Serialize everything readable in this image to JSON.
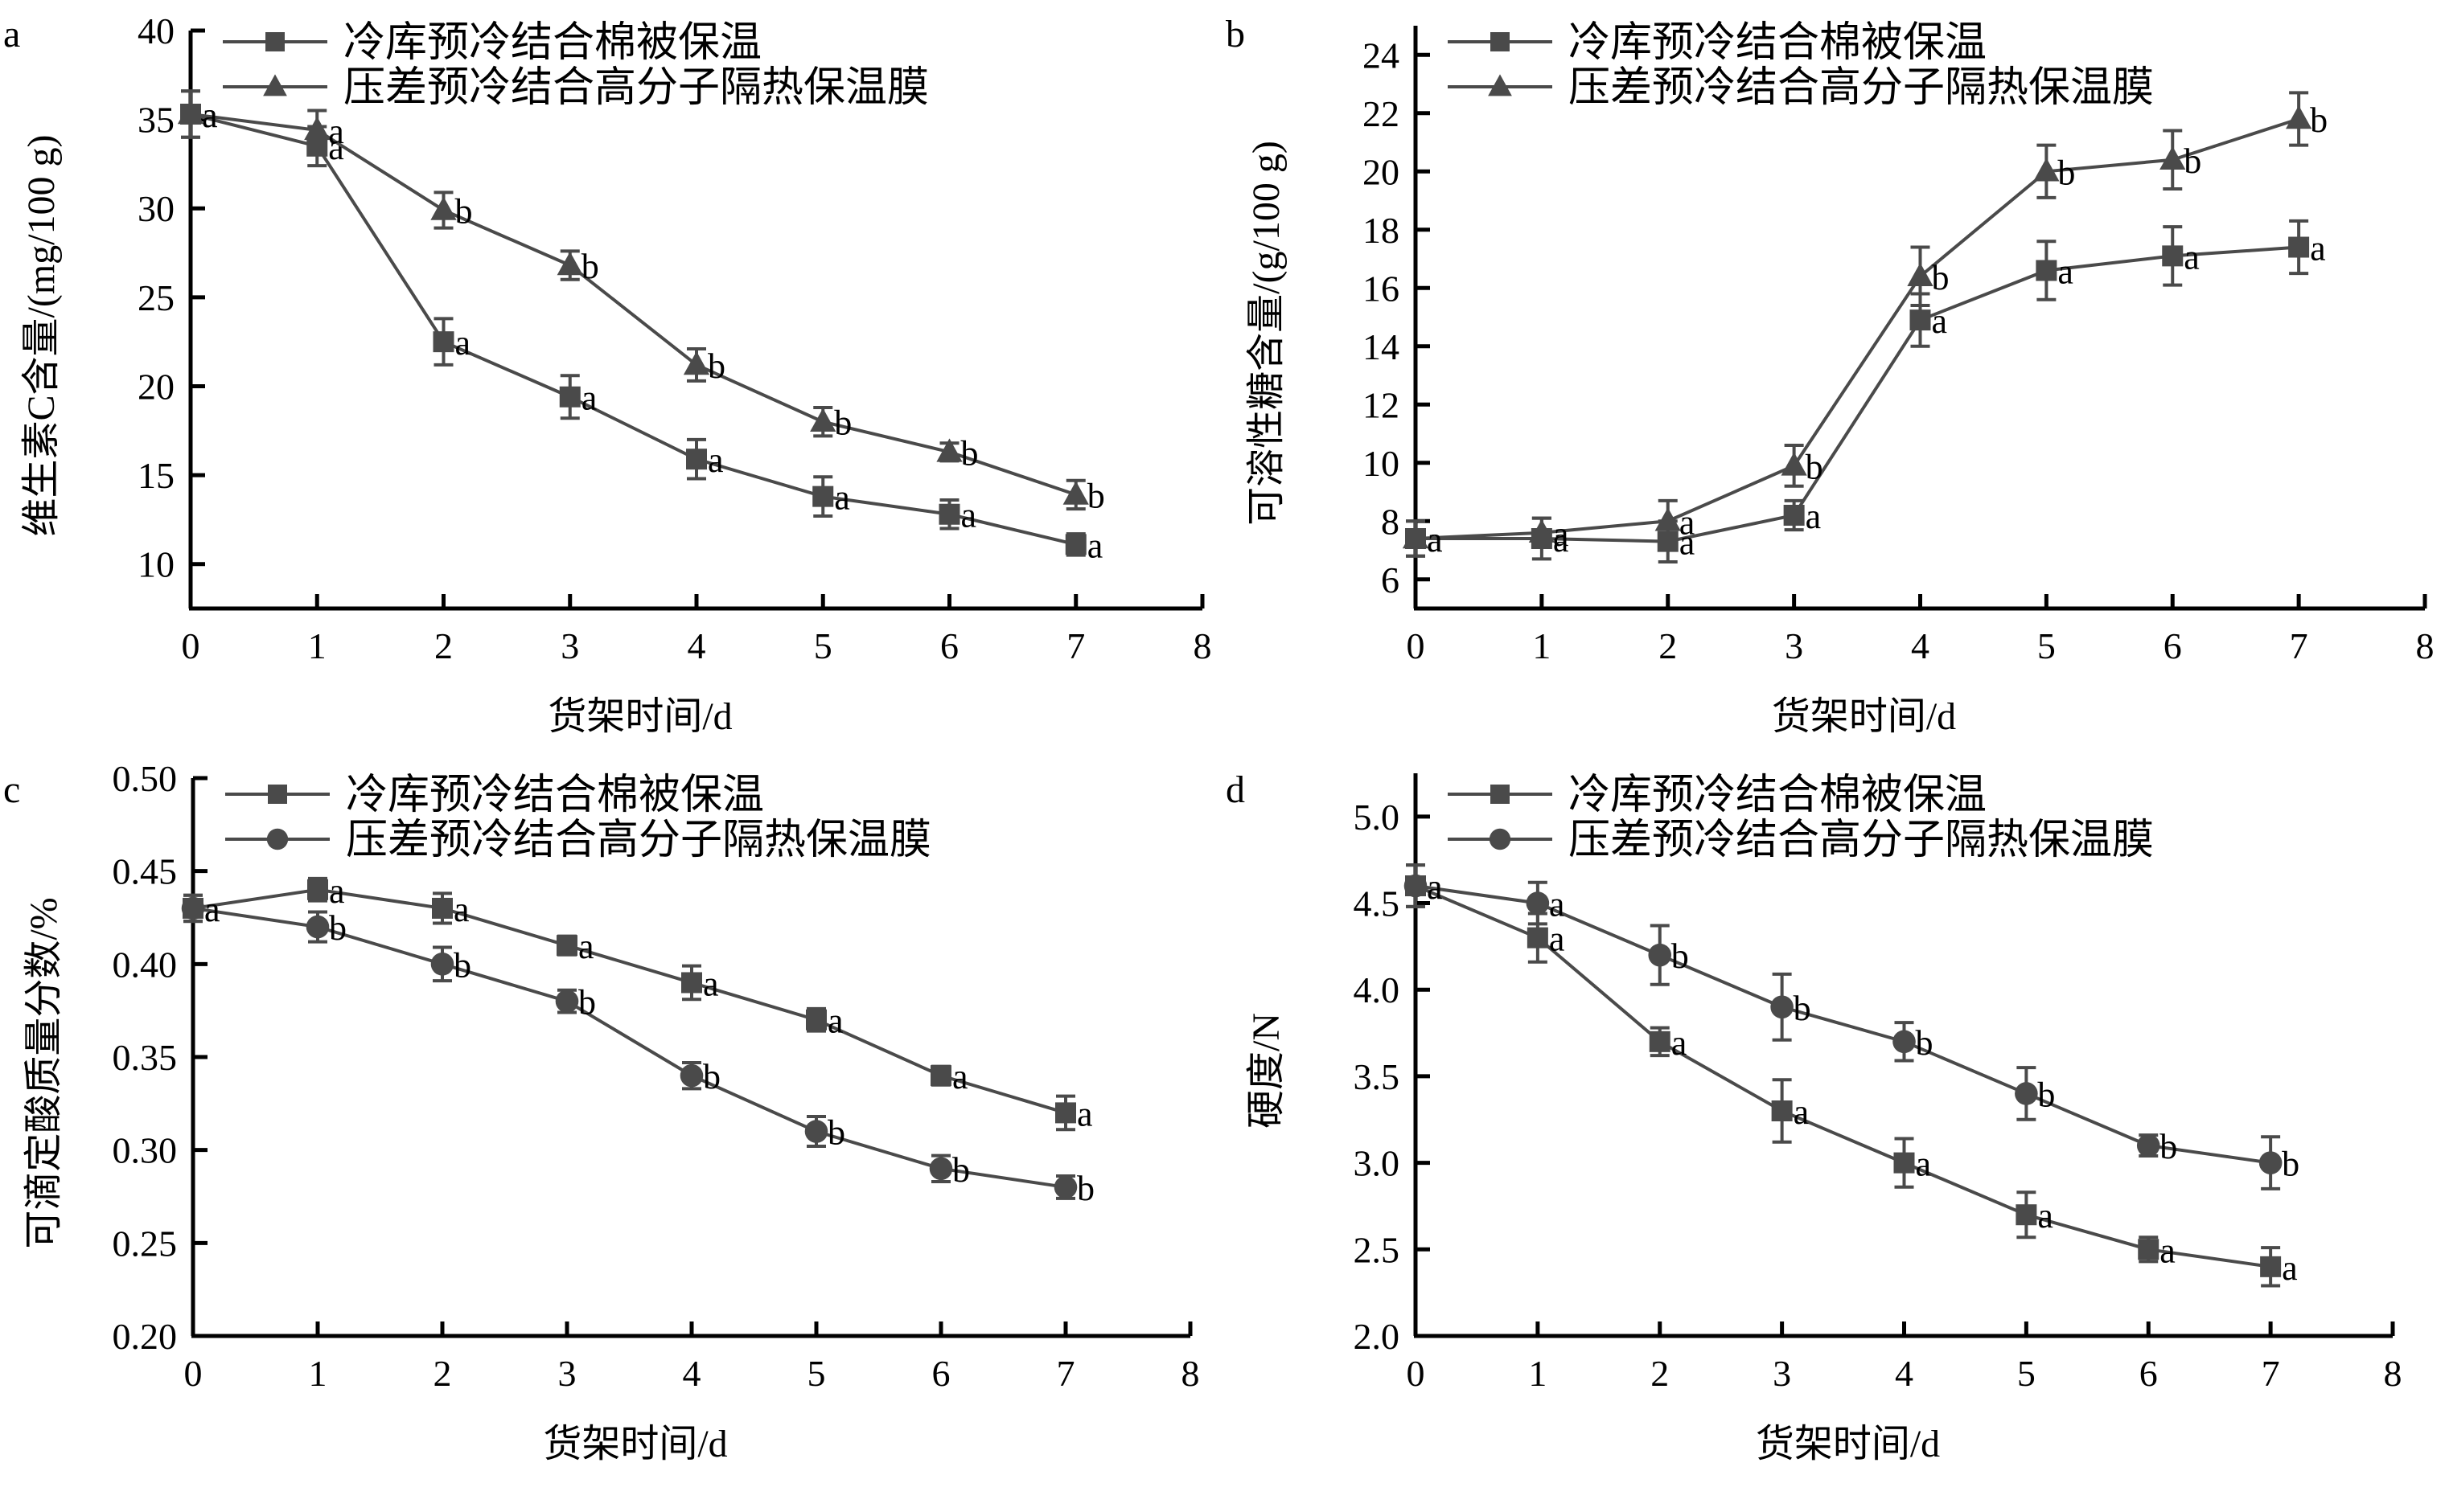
{
  "figure": {
    "series_color": "#4a4a4a",
    "axis_color": "#000000"
  },
  "chart_data": [
    {
      "panel": "a",
      "type": "line",
      "title": "",
      "xlabel": "货架时间/d",
      "ylabel": "维生素C含量/(mg/100 g)",
      "xlim": [
        0,
        8
      ],
      "ylim": [
        7.5,
        40
      ],
      "xticks": [
        0,
        1,
        2,
        3,
        4,
        5,
        6,
        7,
        8
      ],
      "yticks": [
        10,
        15,
        20,
        25,
        30,
        35,
        40
      ],
      "ytick_labels": [
        "10",
        "15",
        "20",
        "25",
        "30",
        "35",
        "40"
      ],
      "grid": false,
      "legend_position": "top",
      "x": [
        0,
        1,
        2,
        3,
        4,
        5,
        6,
        7
      ],
      "series": [
        {
          "name": "冷库预冷结合棉被保温",
          "marker": "square",
          "values": [
            35.3,
            33.5,
            22.5,
            19.4,
            15.9,
            13.8,
            12.8,
            11.1
          ],
          "errors": [
            1.3,
            1.1,
            1.3,
            1.2,
            1.1,
            1.1,
            0.8,
            0.6
          ],
          "labels": [
            "a",
            "a",
            "a",
            "a",
            "a",
            "a",
            "a",
            "a"
          ]
        },
        {
          "name": "压差预冷结合高分子隔热保温膜",
          "marker": "triangle",
          "values": [
            35.3,
            34.4,
            29.9,
            26.8,
            21.2,
            18.0,
            16.3,
            13.9
          ],
          "errors": [
            1.3,
            1.1,
            1.0,
            0.8,
            0.9,
            0.8,
            0.5,
            0.8
          ],
          "labels": [
            "a",
            "a",
            "b",
            "b",
            "b",
            "b",
            "b",
            "b"
          ]
        }
      ]
    },
    {
      "panel": "b",
      "type": "line",
      "title": "",
      "xlabel": "货架时间/d",
      "ylabel": "可溶性糖含量/(g/100 g)",
      "xlim": [
        0,
        8
      ],
      "ylim": [
        5,
        25
      ],
      "xticks": [
        0,
        1,
        2,
        3,
        4,
        5,
        6,
        7,
        8
      ],
      "yticks": [
        6,
        8,
        10,
        12,
        14,
        16,
        18,
        20,
        22,
        24
      ],
      "ytick_labels": [
        "6",
        "8",
        "10",
        "12",
        "14",
        "16",
        "18",
        "20",
        "22",
        "24"
      ],
      "grid": false,
      "legend_position": "top",
      "x": [
        0,
        1,
        2,
        3,
        4,
        5,
        6,
        7
      ],
      "series": [
        {
          "name": "冷库预冷结合棉被保温",
          "marker": "square",
          "values": [
            7.4,
            7.4,
            7.3,
            8.2,
            14.9,
            16.6,
            17.1,
            17.4
          ],
          "errors": [
            0.6,
            0.7,
            0.7,
            0.5,
            0.9,
            1.0,
            1.0,
            0.9
          ],
          "labels": [
            "a",
            "a",
            "a",
            "a",
            "a",
            "a",
            "a",
            "a"
          ]
        },
        {
          "name": "压差预冷结合高分子隔热保温膜",
          "marker": "triangle",
          "values": [
            7.4,
            7.6,
            8.0,
            9.9,
            16.4,
            20.0,
            20.4,
            21.8
          ],
          "errors": [
            0.6,
            0.5,
            0.7,
            0.7,
            1.0,
            0.9,
            1.0,
            0.9
          ],
          "labels": [
            "a",
            "a",
            "a",
            "b",
            "b",
            "b",
            "b",
            "b"
          ]
        }
      ]
    },
    {
      "panel": "c",
      "type": "line",
      "title": "",
      "xlabel": "货架时间/d",
      "ylabel": "可滴定酸质量分数/%",
      "xlim": [
        0,
        8
      ],
      "ylim": [
        0.2,
        0.5
      ],
      "xticks": [
        0,
        1,
        2,
        3,
        4,
        5,
        6,
        7,
        8
      ],
      "yticks": [
        0.2,
        0.25,
        0.3,
        0.35,
        0.4,
        0.45,
        0.5
      ],
      "ytick_labels": [
        "0.20",
        "0.25",
        "0.30",
        "0.35",
        "0.40",
        "0.45",
        "0.50"
      ],
      "grid": false,
      "legend_position": "top",
      "x": [
        0,
        1,
        2,
        3,
        4,
        5,
        6,
        7
      ],
      "series": [
        {
          "name": "冷库预冷结合棉被保温",
          "marker": "square",
          "values": [
            0.43,
            0.44,
            0.43,
            0.41,
            0.39,
            0.37,
            0.34,
            0.32
          ],
          "errors": [
            0.007,
            0.006,
            0.008,
            0.005,
            0.009,
            0.006,
            0.005,
            0.009
          ],
          "labels": [
            "a",
            "a",
            "a",
            "a",
            "a",
            "a",
            "a",
            "a"
          ]
        },
        {
          "name": "压差预冷结合高分子隔热保温膜",
          "marker": "circle",
          "values": [
            0.43,
            0.42,
            0.4,
            0.38,
            0.34,
            0.31,
            0.29,
            0.28
          ],
          "errors": [
            0.007,
            0.008,
            0.009,
            0.006,
            0.007,
            0.008,
            0.007,
            0.006
          ],
          "labels": [
            "a",
            "b",
            "b",
            "b",
            "b",
            "b",
            "b",
            "b"
          ]
        }
      ]
    },
    {
      "panel": "d",
      "type": "line",
      "title": "",
      "xlabel": "货架时间/d",
      "ylabel": "硬度/N",
      "xlim": [
        0,
        8
      ],
      "ylim": [
        2.0,
        5.25
      ],
      "xticks": [
        0,
        1,
        2,
        3,
        4,
        5,
        6,
        7,
        8
      ],
      "yticks": [
        2.0,
        2.5,
        3.0,
        3.5,
        4.0,
        4.5,
        5.0
      ],
      "ytick_labels": [
        "2.0",
        "2.5",
        "3.0",
        "3.5",
        "4.0",
        "4.5",
        "5.0"
      ],
      "grid": false,
      "legend_position": "top",
      "x": [
        0,
        1,
        2,
        3,
        4,
        5,
        6,
        7
      ],
      "series": [
        {
          "name": "冷库预冷结合棉被保温",
          "marker": "square",
          "values": [
            4.6,
            4.3,
            3.7,
            3.3,
            3.0,
            2.7,
            2.5,
            2.4
          ],
          "errors": [
            0.12,
            0.14,
            0.08,
            0.18,
            0.14,
            0.13,
            0.07,
            0.11
          ],
          "labels": [
            "a",
            "a",
            "a",
            "a",
            "a",
            "a",
            "a",
            "a"
          ]
        },
        {
          "name": "压差预冷结合高分子隔热保温膜",
          "marker": "circle",
          "values": [
            4.6,
            4.5,
            4.2,
            3.9,
            3.7,
            3.4,
            3.1,
            3.0
          ],
          "errors": [
            0.12,
            0.12,
            0.17,
            0.19,
            0.11,
            0.15,
            0.06,
            0.15
          ],
          "labels": [
            "a",
            "a",
            "b",
            "b",
            "b",
            "b",
            "b",
            "b"
          ]
        }
      ]
    }
  ]
}
